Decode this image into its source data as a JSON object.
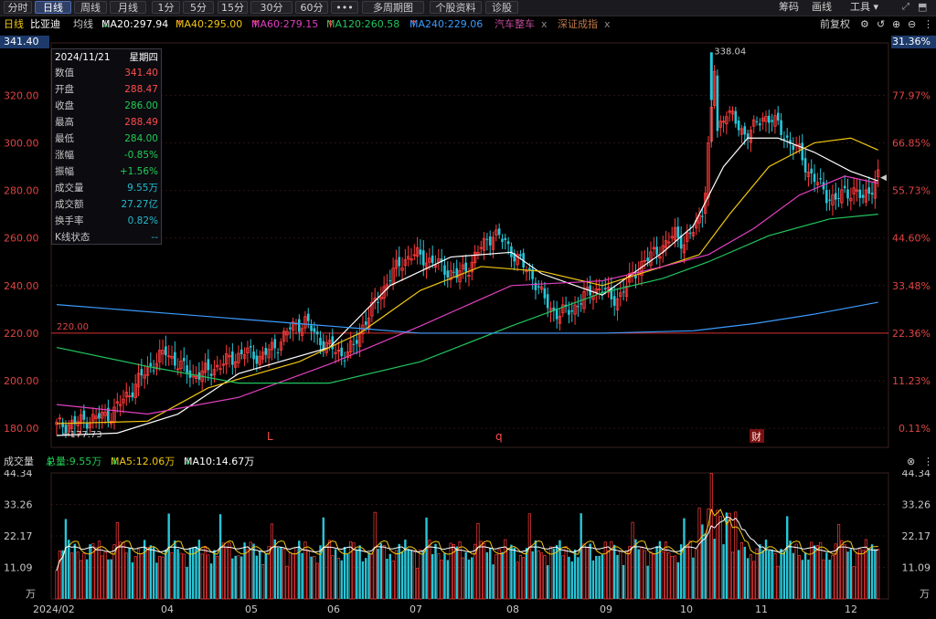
{
  "toolbar": {
    "tabs": [
      "分时",
      "日线",
      "周线",
      "月线",
      "1分",
      "5分",
      "15分",
      "30分",
      "60分",
      "•••",
      "多周期图",
      "个股资料",
      "诊股"
    ],
    "active_tab": "日线",
    "right_items": [
      "筹码",
      "画线",
      "工具"
    ]
  },
  "ma_header": {
    "period": "日线",
    "stock": "比亚迪",
    "type": "均线",
    "ma20": "MA20:297.94",
    "ma40": "MA40:295.00",
    "ma60": "MA60:279.15",
    "ma120": "MA120:260.58",
    "ma240": "MA240:229.06",
    "sector1": "汽车整车",
    "sector2": "深证成指",
    "close_mark": "x",
    "adjust": "前复权",
    "colors": {
      "ma20": "#ffffff",
      "ma40": "#f2c811",
      "ma60": "#e040c0",
      "ma120": "#22c55e",
      "ma240": "#3b9cff"
    }
  },
  "price_axis": {
    "left": [
      "341.40",
      "320.00",
      "300.00",
      "280.00",
      "260.00",
      "240.00",
      "220.00",
      "200.00",
      "180.00"
    ],
    "right": [
      "31.36%",
      "77.97%",
      "66.85%",
      "55.73%",
      "44.60%",
      "33.48%",
      "22.36%",
      "11.23%",
      "0.11%"
    ]
  },
  "annotations": {
    "high": "338.04",
    "low": "177.73",
    "line_label": "220.00",
    "marker_L": "L",
    "marker_q": "q",
    "marker_cai": "财"
  },
  "infobox": {
    "date": "2024/11/21",
    "weekday": "星期四",
    "rows": [
      {
        "k": "数值",
        "v": "341.40",
        "c": "#ff4d4d"
      },
      {
        "k": "开盘",
        "v": "288.47",
        "c": "#ff4d4d"
      },
      {
        "k": "收盘",
        "v": "286.00",
        "c": "#22cc55"
      },
      {
        "k": "最高",
        "v": "288.49",
        "c": "#ff4d4d"
      },
      {
        "k": "最低",
        "v": "284.00",
        "c": "#22cc55"
      },
      {
        "k": "涨幅",
        "v": "-0.85%",
        "c": "#22cc55"
      },
      {
        "k": "振幅",
        "v": "+1.56%",
        "c": "#22cc55"
      },
      {
        "k": "成交量",
        "v": "9.55万",
        "c": "#22bbcc"
      },
      {
        "k": "成交额",
        "v": "27.27亿",
        "c": "#22bbcc"
      },
      {
        "k": "换手率",
        "v": "0.82%",
        "c": "#22bbcc"
      },
      {
        "k": "K线状态",
        "v": "--",
        "c": "#22bbcc"
      }
    ]
  },
  "volume_header": {
    "title": "成交量",
    "total": "总量:9.55万",
    "ma5": "MA5:12.06万",
    "ma10": "MA10:14.67万"
  },
  "volume_axis": {
    "left": [
      "44.34",
      "33.26",
      "22.17",
      "11.09",
      "万"
    ],
    "right": [
      "44.34",
      "33.26",
      "22.17",
      "11.09",
      "万"
    ]
  },
  "x_axis": [
    "2024/02",
    "04",
    "05",
    "06",
    "07",
    "08",
    "09",
    "10",
    "11",
    "12"
  ],
  "chart_data": {
    "type": "candlestick",
    "title": "比亚迪 日线",
    "ylim": [
      172,
      342
    ],
    "ma_visible_values": {
      "MA20": 297.94,
      "MA40": 295.0,
      "MA60": 279.15,
      "MA120": 260.58,
      "MA240": 229.06
    },
    "high_marker": 338.04,
    "low_marker": 177.73,
    "horizontal_line": 220.0,
    "volume_ylim_wan": [
      0,
      44.34
    ],
    "volume_total_wan": 9.55,
    "volume_ma5_wan": 12.06,
    "volume_ma10_wan": 14.67,
    "close_anchors": [
      [
        0,
        181
      ],
      [
        5,
        182
      ],
      [
        12,
        184
      ],
      [
        18,
        186
      ],
      [
        24,
        195
      ],
      [
        30,
        205
      ],
      [
        36,
        212
      ],
      [
        41,
        206
      ],
      [
        45,
        202
      ],
      [
        50,
        204
      ],
      [
        56,
        208
      ],
      [
        62,
        212
      ],
      [
        67,
        210
      ],
      [
        72,
        214
      ],
      [
        77,
        222
      ],
      [
        82,
        225
      ],
      [
        86,
        218
      ],
      [
        90,
        214
      ],
      [
        94,
        211
      ],
      [
        98,
        214
      ],
      [
        102,
        226
      ],
      [
        106,
        234
      ],
      [
        110,
        244
      ],
      [
        114,
        250
      ],
      [
        117,
        253
      ],
      [
        120,
        252
      ],
      [
        124,
        250
      ],
      [
        128,
        247
      ],
      [
        132,
        244
      ],
      [
        136,
        248
      ],
      [
        140,
        256
      ],
      [
        144,
        262
      ],
      [
        148,
        258
      ],
      [
        151,
        253
      ],
      [
        154,
        248
      ],
      [
        157,
        244
      ],
      [
        160,
        236
      ],
      [
        163,
        230
      ],
      [
        166,
        228
      ],
      [
        170,
        230
      ],
      [
        174,
        235
      ],
      [
        177,
        238
      ],
      [
        180,
        239
      ],
      [
        183,
        234
      ],
      [
        186,
        236
      ],
      [
        189,
        242
      ],
      [
        192,
        248
      ],
      [
        195,
        251
      ],
      [
        198,
        255
      ],
      [
        201,
        257
      ],
      [
        204,
        262
      ],
      [
        207,
        258
      ],
      [
        210,
        263
      ],
      [
        213,
        272
      ],
      [
        215,
        290
      ],
      [
        218,
        305
      ],
      [
        221,
        314
      ],
      [
        224,
        308
      ],
      [
        227,
        304
      ],
      [
        230,
        306
      ],
      [
        233,
        311
      ],
      [
        236,
        310
      ],
      [
        239,
        305
      ],
      [
        242,
        300
      ],
      [
        245,
        296
      ],
      [
        248,
        288
      ],
      [
        251,
        283
      ],
      [
        254,
        278
      ],
      [
        257,
        276
      ],
      [
        260,
        279
      ],
      [
        263,
        280
      ],
      [
        266,
        276
      ],
      [
        269,
        282
      ],
      [
        271,
        286
      ]
    ],
    "ma_series": {
      "MA20": [
        [
          0,
          177
        ],
        [
          20,
          178
        ],
        [
          40,
          186
        ],
        [
          60,
          203
        ],
        [
          90,
          214
        ],
        [
          110,
          240
        ],
        [
          130,
          252
        ],
        [
          150,
          254
        ],
        [
          160,
          245
        ],
        [
          180,
          236
        ],
        [
          200,
          254
        ],
        [
          210,
          265
        ],
        [
          220,
          290
        ],
        [
          228,
          302
        ],
        [
          238,
          302
        ],
        [
          250,
          296
        ],
        [
          262,
          288
        ],
        [
          271,
          284
        ]
      ],
      "MA40": [
        [
          0,
          182
        ],
        [
          30,
          183
        ],
        [
          50,
          197
        ],
        [
          80,
          208
        ],
        [
          100,
          220
        ],
        [
          120,
          238
        ],
        [
          140,
          248
        ],
        [
          160,
          246
        ],
        [
          180,
          240
        ],
        [
          200,
          248
        ],
        [
          212,
          253
        ],
        [
          222,
          270
        ],
        [
          235,
          290
        ],
        [
          250,
          300
        ],
        [
          262,
          302
        ],
        [
          271,
          297
        ]
      ],
      "MA60": [
        [
          0,
          190
        ],
        [
          30,
          186
        ],
        [
          60,
          193
        ],
        [
          90,
          207
        ],
        [
          120,
          223
        ],
        [
          150,
          240
        ],
        [
          180,
          242
        ],
        [
          200,
          248
        ],
        [
          215,
          253
        ],
        [
          230,
          264
        ],
        [
          245,
          278
        ],
        [
          260,
          286
        ],
        [
          271,
          283
        ]
      ],
      "MA120": [
        [
          0,
          214
        ],
        [
          30,
          206
        ],
        [
          60,
          199
        ],
        [
          90,
          199
        ],
        [
          120,
          208
        ],
        [
          150,
          223
        ],
        [
          180,
          237
        ],
        [
          200,
          243
        ],
        [
          215,
          250
        ],
        [
          235,
          261
        ],
        [
          255,
          268
        ],
        [
          271,
          270
        ]
      ],
      "MA240": [
        [
          0,
          232
        ],
        [
          40,
          228
        ],
        [
          80,
          224
        ],
        [
          120,
          220
        ],
        [
          150,
          220
        ],
        [
          180,
          220
        ],
        [
          210,
          221
        ],
        [
          230,
          224
        ],
        [
          250,
          228
        ],
        [
          271,
          233
        ]
      ]
    }
  }
}
